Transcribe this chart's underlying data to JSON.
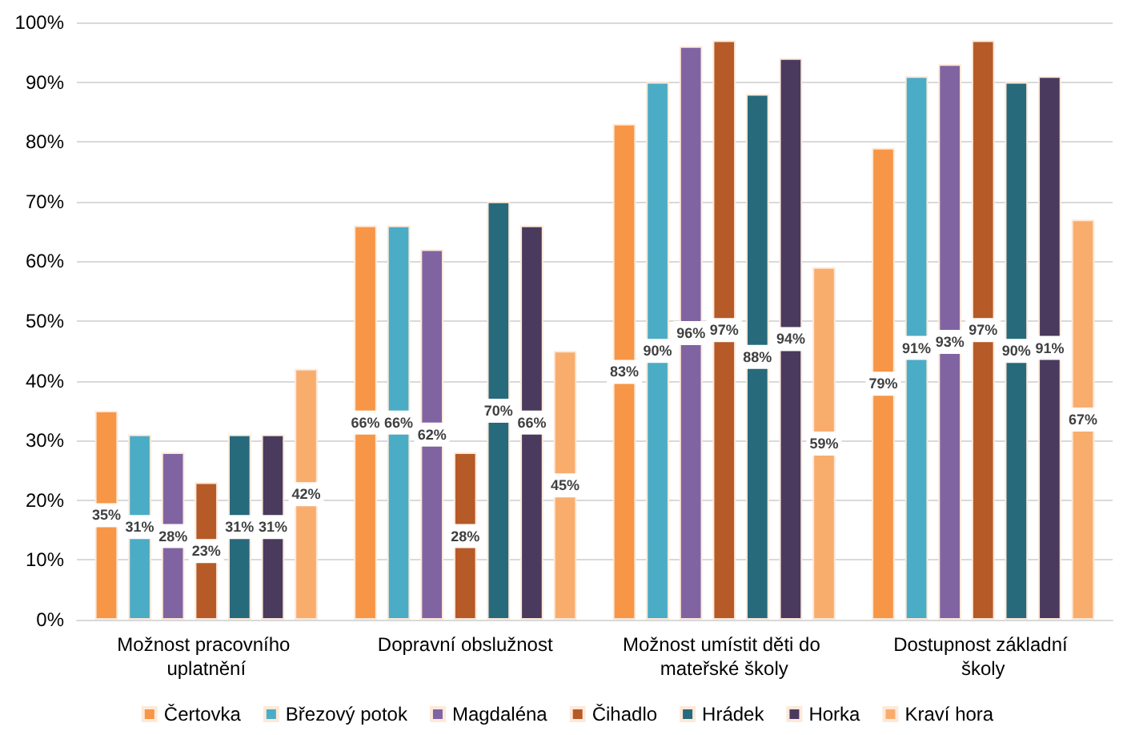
{
  "chart_data": {
    "type": "bar",
    "categories": [
      "Možnost pracovního uplatnění",
      "Dopravní obslužnost",
      "Možnost umístit děti do mateřské školy",
      "Dostupnost základní školy"
    ],
    "series": [
      {
        "name": "Čertovka",
        "color": "#f79646",
        "values": [
          35,
          66,
          83,
          79
        ],
        "value_labels": [
          "35%",
          "66%",
          "83%",
          "79%"
        ]
      },
      {
        "name": "Březový potok",
        "color": "#4bacc6",
        "values": [
          31,
          66,
          90,
          91
        ],
        "value_labels": [
          "31%",
          "66%",
          "90%",
          "91%"
        ]
      },
      {
        "name": "Magdaléna",
        "color": "#8064a2",
        "values": [
          28,
          62,
          96,
          93
        ],
        "value_labels": [
          "28%",
          "62%",
          "96%",
          "93%"
        ]
      },
      {
        "name": "Čihadlo",
        "color": "#b65a28",
        "values": [
          23,
          28,
          97,
          97
        ],
        "value_labels": [
          "23%",
          "28%",
          "97%",
          "97%"
        ]
      },
      {
        "name": "Hrádek",
        "color": "#276a7c",
        "values": [
          31,
          70,
          88,
          90
        ],
        "value_labels": [
          "31%",
          "70%",
          "88%",
          "90%"
        ]
      },
      {
        "name": "Horka",
        "color": "#4a3a5e",
        "values": [
          31,
          66,
          94,
          91
        ],
        "value_labels": [
          "31%",
          "66%",
          "94%",
          "91%"
        ]
      },
      {
        "name": "Kraví hora",
        "color": "#f9ad6d",
        "values": [
          42,
          45,
          59,
          67
        ],
        "value_labels": [
          "42%",
          "45%",
          "59%",
          "67%"
        ]
      }
    ],
    "ylim": [
      0,
      100
    ],
    "yticks": [
      {
        "value": 0,
        "label": "0%"
      },
      {
        "value": 10,
        "label": "10%"
      },
      {
        "value": 20,
        "label": "20%"
      },
      {
        "value": 30,
        "label": "30%"
      },
      {
        "value": 40,
        "label": "40%"
      },
      {
        "value": 50,
        "label": "50%"
      },
      {
        "value": 60,
        "label": "60%"
      },
      {
        "value": 70,
        "label": "70%"
      },
      {
        "value": 80,
        "label": "80%"
      },
      {
        "value": 90,
        "label": "90%"
      },
      {
        "value": 100,
        "label": "100%"
      }
    ],
    "grid": "y",
    "legend": "bottom"
  }
}
